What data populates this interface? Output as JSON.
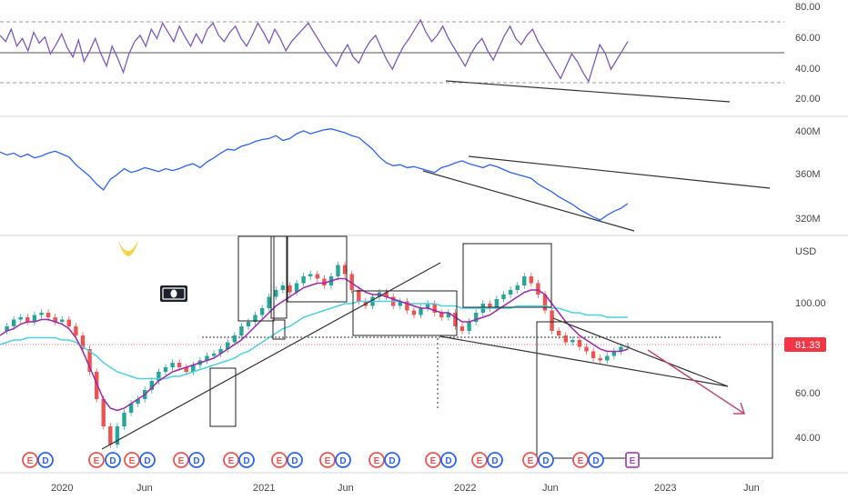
{
  "chart_data": [
    {
      "type": "line",
      "pane": "rsi",
      "y_ticks": [
        "80.00",
        "60.00",
        "40.00",
        "20.00"
      ],
      "ylim": [
        10,
        85
      ],
      "reference_lines": [
        70,
        50,
        30
      ],
      "series": [
        {
          "values": [
            62,
            58,
            66,
            55,
            60,
            52,
            64,
            57,
            61,
            50,
            56,
            63,
            54,
            48,
            59,
            45,
            52,
            60,
            50,
            42,
            55,
            47,
            38,
            50,
            58,
            62,
            55,
            66,
            60,
            70,
            64,
            58,
            68,
            61,
            55,
            63,
            57,
            66,
            70,
            62,
            58,
            64,
            68,
            60,
            55,
            62,
            70,
            64,
            57,
            66,
            60,
            52,
            58,
            62,
            66,
            70,
            64,
            58,
            52,
            47,
            42,
            50,
            56,
            48,
            44,
            52,
            58,
            62,
            54,
            46,
            40,
            48,
            55,
            60,
            66,
            72,
            64,
            58,
            62,
            68,
            60,
            54,
            48,
            42,
            50,
            56,
            60,
            52,
            46,
            54,
            62,
            68,
            60,
            56,
            62,
            66,
            58,
            52,
            46,
            40,
            34,
            42,
            50,
            45,
            38,
            32,
            44,
            56,
            50,
            40,
            46,
            52,
            58
          ]
        }
      ]
    },
    {
      "type": "line",
      "pane": "volume",
      "y_ticks": [
        "400M",
        "360M",
        "320M"
      ],
      "ylim": [
        300,
        420
      ],
      "series": [
        {
          "values": [
            385,
            382,
            384,
            380,
            383,
            379,
            381,
            384,
            386,
            383,
            380,
            372,
            366,
            360,
            352,
            346,
            357,
            362,
            368,
            364,
            366,
            369,
            367,
            365,
            368,
            366,
            368,
            371,
            373,
            369,
            375,
            379,
            384,
            388,
            387,
            391,
            393,
            396,
            398,
            399,
            402,
            397,
            399,
            404,
            407,
            404,
            406,
            408,
            409,
            407,
            405,
            402,
            400,
            394,
            388,
            380,
            374,
            371,
            372,
            369,
            370,
            368,
            366,
            364,
            369,
            371,
            374,
            376,
            373,
            371,
            369,
            372,
            370,
            367,
            364,
            362,
            360,
            358,
            352,
            348,
            344,
            339,
            335,
            331,
            326,
            322,
            318,
            315,
            320,
            324,
            327,
            332
          ]
        }
      ]
    },
    {
      "type": "line",
      "pane": "price",
      "currency": "USD",
      "y_ticks": [
        "100.00",
        "80.00",
        "60.00",
        "40.00"
      ],
      "ylim": [
        32,
        128
      ],
      "last_price": "81.33",
      "last_price_value": 81.33,
      "x_ticks": [
        "2020",
        "Jun",
        "2021",
        "Jun",
        "2022",
        "Jun",
        "2023",
        "Jun"
      ],
      "series": [
        {
          "kind": "close",
          "values": [
            88,
            90,
            93,
            94,
            92,
            95,
            96,
            94,
            92,
            93,
            90,
            86,
            80,
            70,
            58,
            46,
            38,
            46,
            52,
            56,
            58,
            62,
            66,
            70,
            72,
            74,
            72,
            70,
            73,
            75,
            77,
            78,
            80,
            83,
            86,
            90,
            92,
            95,
            98,
            103,
            106,
            108,
            105,
            109,
            112,
            113,
            111,
            108,
            112,
            117,
            113,
            106,
            101,
            99,
            103,
            105,
            103,
            99,
            101,
            97,
            95,
            98,
            100,
            96,
            94,
            96,
            90,
            88,
            92,
            96,
            100,
            98,
            102,
            104,
            106,
            108,
            112,
            109,
            104,
            97,
            88,
            86,
            83,
            84,
            81,
            79,
            76,
            75,
            77,
            79,
            81,
            81.33
          ]
        },
        {
          "kind": "ma-short",
          "values": [
            86,
            88,
            89,
            91,
            92,
            92,
            93,
            93,
            92,
            91,
            89,
            85,
            79,
            72,
            65,
            58,
            54,
            53,
            54,
            56,
            58,
            60,
            63,
            66,
            68,
            70,
            71,
            72,
            73,
            74,
            75,
            76,
            78,
            80,
            82,
            84,
            87,
            90,
            93,
            96,
            99,
            101,
            103,
            105,
            107,
            108,
            109,
            109,
            110,
            111,
            111,
            109,
            107,
            105,
            104,
            104,
            103,
            102,
            101,
            100,
            99,
            98,
            98,
            97,
            96,
            96,
            94,
            92,
            92,
            93,
            94,
            95,
            97,
            99,
            101,
            103,
            105,
            106,
            106,
            104,
            100,
            96,
            92,
            89,
            86,
            84,
            82,
            80,
            79,
            79,
            79,
            80
          ]
        },
        {
          "kind": "ma-long",
          "values": [
            82,
            83,
            84,
            84,
            85,
            85,
            85,
            85,
            85,
            84,
            84,
            83,
            81,
            79,
            77,
            74,
            72,
            70,
            69,
            68,
            67,
            67,
            67,
            67,
            67,
            68,
            68,
            69,
            70,
            71,
            72,
            73,
            74,
            75,
            76,
            78,
            79,
            81,
            83,
            85,
            87,
            89,
            90,
            92,
            94,
            95,
            96,
            97,
            98,
            99,
            100,
            100,
            101,
            101,
            101,
            101,
            101,
            101,
            101,
            100,
            100,
            100,
            100,
            100,
            99,
            99,
            99,
            98,
            98,
            98,
            98,
            98,
            98,
            98,
            98,
            99,
            99,
            99,
            99,
            99,
            98,
            98,
            97,
            96,
            96,
            95,
            95,
            95,
            94,
            94,
            94,
            94
          ]
        }
      ]
    }
  ],
  "events": [
    "E",
    "D",
    "E",
    "D",
    "E",
    "D",
    "E",
    "D",
    "E",
    "D",
    "E",
    "D",
    "E",
    "D",
    "E",
    "D",
    "E",
    "D",
    "E",
    "D",
    "E",
    "D",
    "E",
    "D",
    "E",
    "D",
    "E",
    "D",
    "E",
    "D",
    "E",
    "D",
    "E"
  ],
  "icons": [
    "dollar-bill-icon",
    "horns-icon"
  ],
  "colors": {
    "rsi": "#7e57c2",
    "volume": "#2962ff",
    "candle_up": "#26a69a",
    "candle_down": "#ef5350",
    "ma_short": "#9c27b0",
    "ma_long": "#4dd0e1",
    "price_tag": "#f23645",
    "earnings": "#ef5350",
    "dividend": "#2962ff",
    "future_earnings": "#ab47bc",
    "arrow": "#c2477a"
  }
}
